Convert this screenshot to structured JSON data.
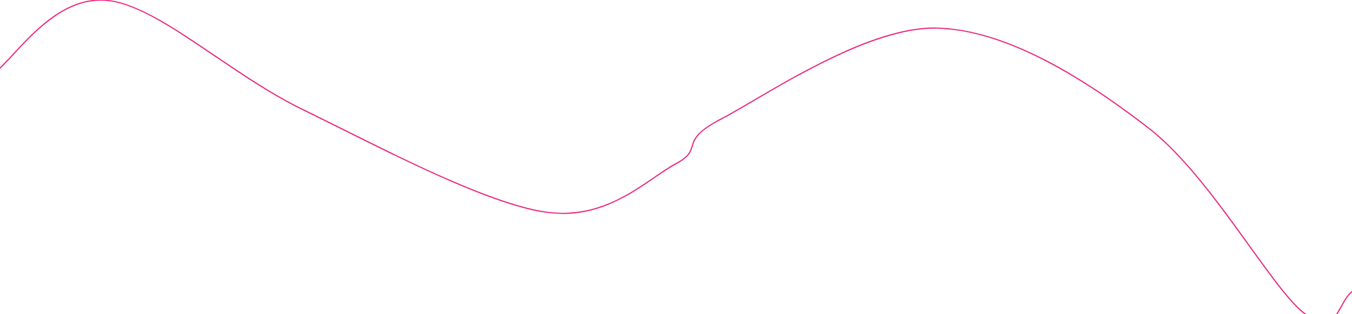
{
  "decoration": {
    "shape": "wavy-line",
    "stroke_color": "#e91e78",
    "background_color": "#ffffff"
  }
}
